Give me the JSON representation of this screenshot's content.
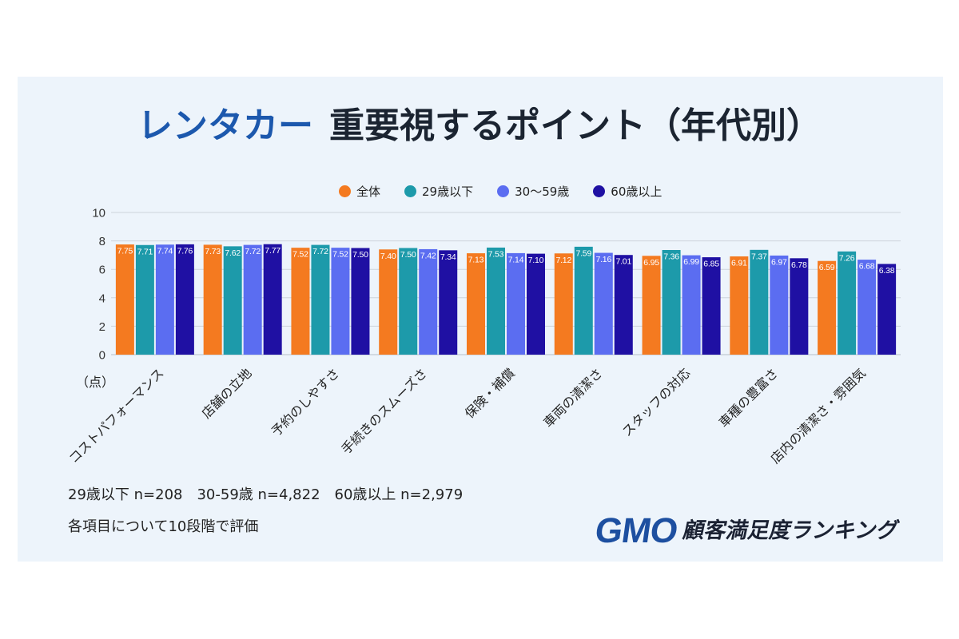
{
  "chart_data": {
    "type": "bar",
    "title": {
      "accent": "レンタカー",
      "main": "重要視するポイント（年代別）"
    },
    "xlabel": "",
    "ylabel": "（点）",
    "ylim": [
      0,
      10
    ],
    "yticks": [
      0,
      2,
      4,
      6,
      8,
      10
    ],
    "grid": true,
    "legend_position": "top",
    "data_labels": true,
    "categories": [
      "コストパフォーマンス",
      "店舗の立地",
      "予約のしやすさ",
      "手続きのスムーズさ",
      "保険・補償",
      "車両の清潔さ",
      "スタッフの対応",
      "車種の豊富さ",
      "店内の清潔さ・雰囲気"
    ],
    "series": [
      {
        "name": "全体",
        "color": "#f47a20",
        "values": [
          7.75,
          7.73,
          7.52,
          7.4,
          7.13,
          7.12,
          6.95,
          6.91,
          6.59
        ]
      },
      {
        "name": "29歳以下",
        "color": "#1d9aaa",
        "values": [
          7.71,
          7.62,
          7.72,
          7.5,
          7.53,
          7.59,
          7.36,
          7.37,
          7.26
        ]
      },
      {
        "name": "30〜59歳",
        "color": "#5b6df1",
        "values": [
          7.74,
          7.72,
          7.52,
          7.42,
          7.14,
          7.16,
          6.99,
          6.97,
          6.68
        ]
      },
      {
        "name": "60歳以上",
        "color": "#1f10a3",
        "values": [
          7.76,
          7.77,
          7.5,
          7.34,
          7.1,
          7.01,
          6.85,
          6.78,
          6.38
        ]
      }
    ]
  },
  "notes": {
    "sample_sizes": "29歳以下 n=208　30-59歳 n=4,822　60歳以上 n=2,979",
    "rating_scale": "各項目について10段階で評価"
  },
  "logo": {
    "mark": "GMO",
    "text": "顧客満足度ランキング"
  },
  "theme": {
    "panel_background": "#edf4fb",
    "title_accent": "#1c58ad",
    "title": "#1b2431",
    "logo_blue": "#1d4fa0"
  }
}
